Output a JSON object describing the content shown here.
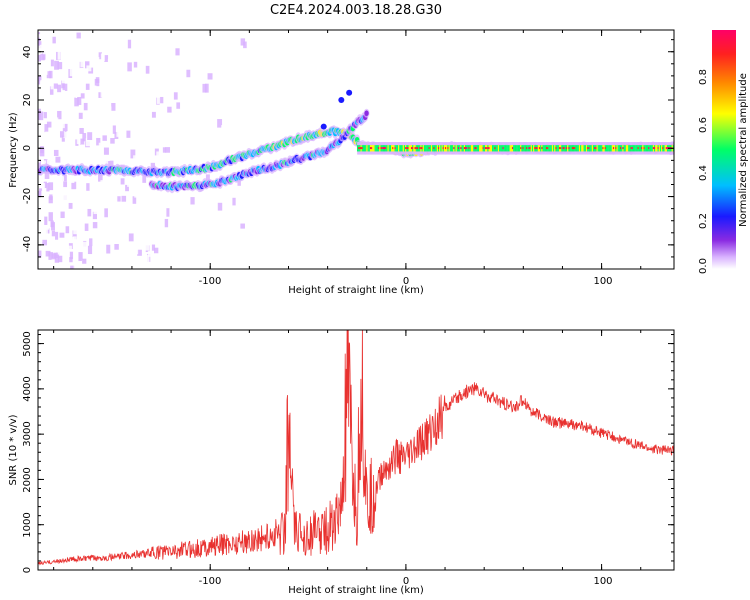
{
  "title": "C2E4.2024.003.18.28.G30",
  "chart_data": [
    {
      "type": "heatmap",
      "xlabel": "Height of straight line (km)",
      "ylabel": "Frequency (Hz)",
      "xlim": [
        -188,
        137
      ],
      "ylim": [
        -50,
        49
      ],
      "xticks": [
        "-100",
        "0",
        "100"
      ],
      "yticks": [
        "-40",
        "-20",
        "0",
        "20",
        "40"
      ],
      "colorbar": {
        "label": "Normalized spectral amplitude",
        "range": [
          0.0,
          1.0
        ],
        "ticks": [
          "0.0",
          "0.2",
          "0.4",
          "0.6",
          "0.8"
        ],
        "colors": [
          "#ffffff",
          "#d9b3ff",
          "#8a2be2",
          "#1a1aff",
          "#00bfff",
          "#00ff66",
          "#ffff00",
          "#ff8800",
          "#ff2020",
          "#ff0066"
        ]
      },
      "ridges": [
        {
          "x": [
            -188,
            -150,
            -120,
            -100,
            -90,
            -70,
            -55,
            -45,
            -38,
            -30,
            -22,
            -10,
            0,
            10,
            20,
            60,
            100,
            137
          ],
          "y": [
            -9,
            -9,
            -10,
            -8,
            -5,
            0,
            4,
            6,
            7,
            6,
            1,
            0,
            -2,
            -1,
            0,
            0,
            0,
            0
          ]
        },
        {
          "x": [
            -130,
            -115,
            -100,
            -90,
            -80,
            -65,
            -58,
            -48,
            -40,
            -34,
            -28,
            -20
          ],
          "y": [
            -15,
            -16,
            -15,
            -13,
            -10,
            -7,
            -5,
            -3,
            -1,
            3,
            8,
            14
          ]
        }
      ],
      "peak_band": {
        "x_from": -25,
        "x_to": 137,
        "y": 0
      },
      "noise_region": {
        "x_from": -188,
        "x_to": -80
      }
    },
    {
      "type": "line",
      "xlabel": "Height of straight line (km)",
      "ylabel": "SNR (10 * v/v)",
      "xlim": [
        -188,
        137
      ],
      "ylim": [
        0,
        5300
      ],
      "xticks": [
        "-100",
        "0",
        "100"
      ],
      "yticks": [
        "0",
        "1000",
        "2000",
        "3000",
        "4000",
        "5000"
      ],
      "color": "#e8312f",
      "x": [
        -188,
        -170,
        -150,
        -130,
        -110,
        -95,
        -80,
        -70,
        -62,
        -60,
        -57,
        -50,
        -40,
        -33,
        -30,
        -25,
        -23,
        -20,
        -15,
        -10,
        -5,
        0,
        10,
        20,
        30,
        35,
        45,
        55,
        60,
        65,
        75,
        90,
        110,
        125,
        137
      ],
      "y": [
        150,
        250,
        300,
        400,
        500,
        600,
        700,
        800,
        1000,
        3600,
        900,
        900,
        1000,
        1400,
        4300,
        1000,
        5300,
        1500,
        2000,
        2300,
        2600,
        2500,
        3000,
        3600,
        3950,
        4050,
        3800,
        3600,
        3800,
        3500,
        3300,
        3200,
        2900,
        2700,
        2650
      ]
    }
  ]
}
